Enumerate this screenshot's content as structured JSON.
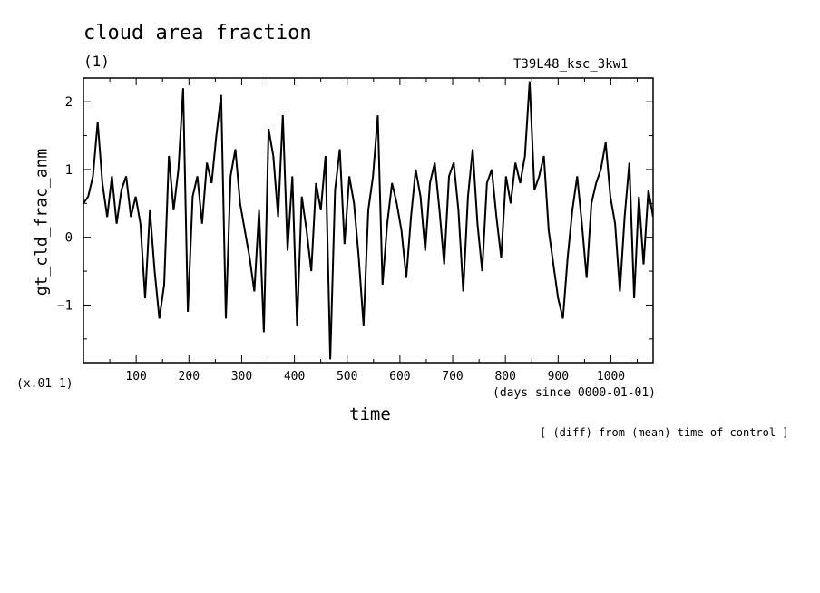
{
  "chart_data": {
    "type": "line",
    "title": "cloud area fraction",
    "units_label": "(1)",
    "run_label": "T39L48_ksc_3kw1",
    "ylabel": "gt_cld_frac_anm",
    "xlabel": "time",
    "x_units": "(days since 0000-01-01)",
    "y_scale_note": "(x.01 1)",
    "footer": "[ (diff) from (mean) time of control ]",
    "xlim": [
      0,
      1080
    ],
    "ylim": [
      -1.85,
      2.35
    ],
    "xticks": [
      100,
      200,
      300,
      400,
      500,
      600,
      700,
      800,
      900,
      1000
    ],
    "yticks": [
      -1,
      0,
      1,
      2
    ],
    "ytick_labels": [
      "−1",
      "0",
      "1",
      "2"
    ],
    "series": [
      {
        "x": [
          0,
          9,
          18,
          27,
          36,
          45,
          54,
          63,
          72,
          81,
          90,
          99,
          108,
          117,
          126,
          135,
          144,
          153,
          162,
          171,
          180,
          189,
          198,
          207,
          216,
          225,
          234,
          243,
          252,
          261,
          270,
          279,
          288,
          297,
          306,
          315,
          324,
          333,
          342,
          351,
          360,
          369,
          378,
          387,
          396,
          405,
          414,
          423,
          432,
          441,
          450,
          459,
          468,
          477,
          486,
          495,
          504,
          513,
          522,
          531,
          540,
          549,
          558,
          567,
          576,
          585,
          594,
          603,
          612,
          621,
          630,
          639,
          648,
          657,
          666,
          675,
          684,
          693,
          702,
          711,
          720,
          729,
          738,
          747,
          756,
          765,
          774,
          783,
          792,
          801,
          810,
          819,
          828,
          837,
          846,
          855,
          864,
          873,
          882,
          891,
          900,
          909,
          918,
          927,
          936,
          945,
          954,
          963,
          972,
          981,
          990,
          999,
          1008,
          1017,
          1026,
          1035,
          1044,
          1053,
          1062,
          1071,
          1080
        ],
        "values": [
          0.5,
          0.6,
          0.9,
          1.7,
          0.8,
          0.3,
          0.9,
          0.2,
          0.7,
          0.9,
          0.3,
          0.6,
          0.2,
          -0.9,
          0.4,
          -0.5,
          -1.2,
          -0.7,
          1.2,
          0.4,
          1.0,
          2.2,
          -1.1,
          0.6,
          0.9,
          0.2,
          1.1,
          0.8,
          1.5,
          2.1,
          -1.2,
          0.9,
          1.3,
          0.5,
          0.1,
          -0.3,
          -0.8,
          0.4,
          -1.4,
          1.6,
          1.2,
          0.3,
          1.8,
          -0.2,
          0.9,
          -1.3,
          0.6,
          0.1,
          -0.5,
          0.8,
          0.4,
          1.2,
          -1.8,
          0.7,
          1.3,
          -0.1,
          0.9,
          0.5,
          -0.3,
          -1.3,
          0.4,
          0.9,
          1.8,
          -0.7,
          0.2,
          0.8,
          0.5,
          0.1,
          -0.6,
          0.3,
          1.0,
          0.6,
          -0.2,
          0.8,
          1.1,
          0.4,
          -0.4,
          0.9,
          1.1,
          0.4,
          -0.8,
          0.6,
          1.3,
          0.2,
          -0.5,
          0.8,
          1.0,
          0.3,
          -0.3,
          0.9,
          0.5,
          1.1,
          0.8,
          1.2,
          2.3,
          0.7,
          0.9,
          1.2,
          0.1,
          -0.4,
          -0.9,
          -1.2,
          -0.3,
          0.4,
          0.9,
          0.2,
          -0.6,
          0.5,
          0.8,
          1.0,
          1.4,
          0.6,
          0.2,
          -0.8,
          0.3,
          1.1,
          -0.9,
          0.6,
          -0.4,
          0.7,
          0.3
        ]
      }
    ]
  }
}
